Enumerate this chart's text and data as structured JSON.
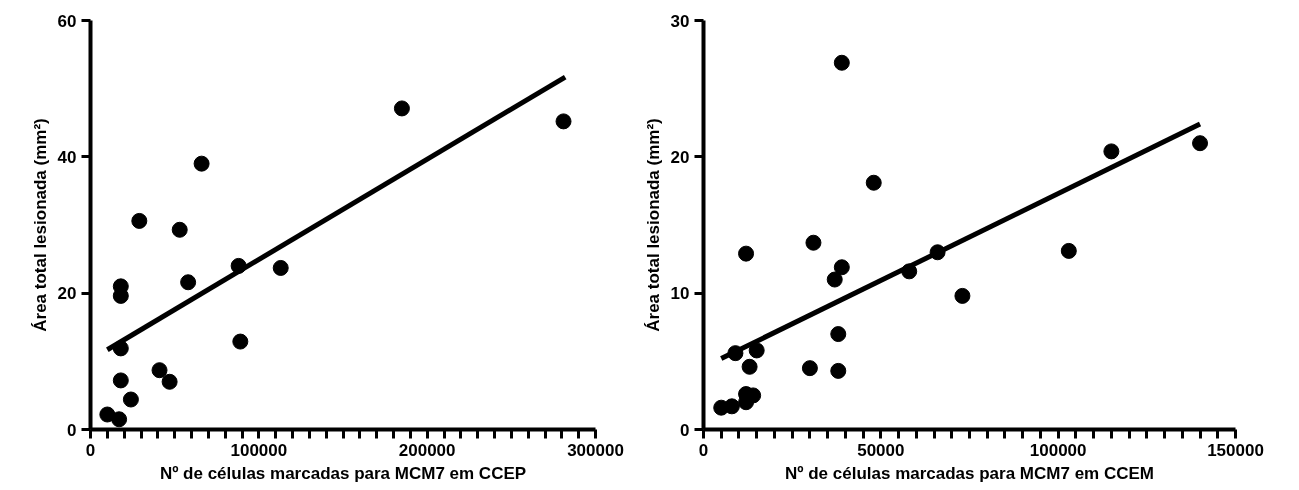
{
  "chart_data": [
    {
      "type": "scatter",
      "xlabel": "Nº de células marcadas para MCM7 em CCEP",
      "ylabel": "Área total lesionada (mm²)",
      "xlim": [
        0,
        300000
      ],
      "ylim": [
        0,
        60
      ],
      "yticks": [
        0,
        20,
        40,
        60
      ],
      "xticks": [
        0,
        {
          "value": 10000,
          "label": null
        },
        {
          "value": 20000,
          "label": null
        },
        {
          "value": 30000,
          "label": null
        },
        {
          "value": 40000,
          "label": null
        },
        {
          "value": 50000,
          "label": null
        },
        {
          "value": 60000,
          "label": null
        },
        {
          "value": 70000,
          "label": null
        },
        {
          "value": 80000,
          "label": null
        },
        {
          "value": 90000,
          "label": null
        },
        100000,
        {
          "value": 110000,
          "label": null
        },
        {
          "value": 120000,
          "label": null
        },
        {
          "value": 130000,
          "label": null
        },
        {
          "value": 140000,
          "label": null
        },
        {
          "value": 150000,
          "label": null
        },
        {
          "value": 160000,
          "label": null
        },
        {
          "value": 170000,
          "label": null
        },
        {
          "value": 180000,
          "label": null
        },
        {
          "value": 190000,
          "label": null
        },
        200000,
        {
          "value": 210000,
          "label": null
        },
        {
          "value": 220000,
          "label": null
        },
        {
          "value": 230000,
          "label": null
        },
        {
          "value": 240000,
          "label": null
        },
        {
          "value": 250000,
          "label": null
        },
        {
          "value": 260000,
          "label": null
        },
        {
          "value": 270000,
          "label": null
        },
        {
          "value": 280000,
          "label": null
        },
        {
          "value": 290000,
          "label": null
        },
        300000
      ],
      "grid": false,
      "series": [
        {
          "marker": "circle",
          "color": "#000000",
          "x": [
            10000,
            17000,
            18000,
            18000,
            18000,
            18000,
            24000,
            29000,
            41000,
            47000,
            53000,
            58000,
            66000,
            88000,
            89000,
            113000,
            185000,
            281000
          ],
          "values": [
            2.2,
            1.5,
            11.9,
            21,
            19.6,
            7.2,
            4.4,
            30.6,
            8.7,
            7,
            29.3,
            21.6,
            39,
            24,
            12.9,
            23.7,
            47.1,
            45.2
          ]
        },
        {
          "type": "line",
          "marker": "none",
          "color": "#000000",
          "x": [
            10000,
            282000
          ],
          "values": [
            11.7,
            51.7
          ]
        }
      ]
    },
    {
      "type": "scatter",
      "xlabel": "Nº de células marcadas para MCM7 em CCEM",
      "ylabel": "Área total lesionada (mm²)",
      "xlim": [
        0,
        150000
      ],
      "ylim": [
        0,
        30
      ],
      "yticks": [
        0,
        10,
        20,
        30
      ],
      "xticks": [
        0,
        {
          "value": 5000,
          "label": null
        },
        {
          "value": 10000,
          "label": null
        },
        {
          "value": 15000,
          "label": null
        },
        {
          "value": 20000,
          "label": null
        },
        {
          "value": 25000,
          "label": null
        },
        {
          "value": 30000,
          "label": null
        },
        {
          "value": 35000,
          "label": null
        },
        {
          "value": 40000,
          "label": null
        },
        {
          "value": 45000,
          "label": null
        },
        50000,
        {
          "value": 55000,
          "label": null
        },
        {
          "value": 60000,
          "label": null
        },
        {
          "value": 65000,
          "label": null
        },
        {
          "value": 70000,
          "label": null
        },
        {
          "value": 75000,
          "label": null
        },
        {
          "value": 80000,
          "label": null
        },
        {
          "value": 85000,
          "label": null
        },
        {
          "value": 90000,
          "label": null
        },
        {
          "value": 95000,
          "label": null
        },
        100000,
        {
          "value": 105000,
          "label": null
        },
        {
          "value": 110000,
          "label": null
        },
        {
          "value": 115000,
          "label": null
        },
        {
          "value": 120000,
          "label": null
        },
        {
          "value": 125000,
          "label": null
        },
        {
          "value": 130000,
          "label": null
        },
        {
          "value": 135000,
          "label": null
        },
        {
          "value": 140000,
          "label": null
        },
        {
          "value": 145000,
          "label": null
        },
        150000
      ],
      "grid": false,
      "series": [
        {
          "marker": "circle",
          "color": "#000000",
          "x": [
            5000,
            8000,
            9000,
            12000,
            12000,
            12000,
            13000,
            14000,
            15000,
            30000,
            31000,
            37000,
            38000,
            38000,
            39000,
            39000,
            48000,
            58000,
            66000,
            73000,
            103000,
            115000,
            140000
          ],
          "values": [
            1.6,
            1.7,
            5.6,
            12.9,
            2.0,
            2.6,
            4.6,
            2.5,
            5.8,
            4.5,
            13.7,
            11.0,
            4.3,
            7.0,
            11.9,
            26.9,
            18.1,
            11.6,
            13.0,
            9.8,
            13.1,
            20.4,
            21.0
          ]
        },
        {
          "type": "line",
          "marker": "none",
          "color": "#000000",
          "x": [
            5000,
            140000
          ],
          "values": [
            5.2,
            22.4
          ]
        }
      ]
    }
  ]
}
